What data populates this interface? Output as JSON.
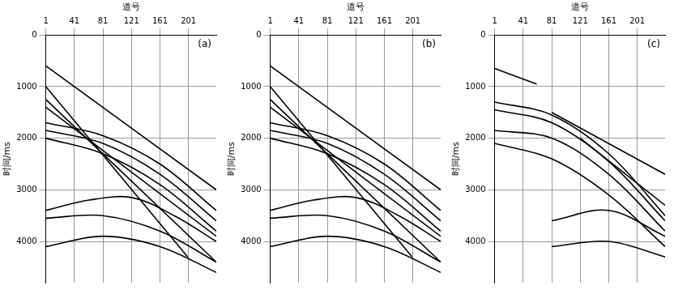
{
  "chart_data": [
    {
      "type": "line",
      "label": "(a)",
      "x_label": "道号",
      "y_label": "时间/ms",
      "xlim": [
        1,
        240
      ],
      "xticks": [
        1,
        41,
        81,
        121,
        161,
        201
      ],
      "ylim": [
        0,
        4800
      ],
      "yticks": [
        0,
        1000,
        2000,
        3000,
        4000
      ],
      "grid": true,
      "series": [
        {
          "color": "#000000",
          "x": [
            1,
            240
          ],
          "values": [
            600,
            3000
          ]
        },
        {
          "color": "#000000",
          "x": [
            1,
            200
          ],
          "values": [
            1000,
            4300
          ]
        },
        {
          "color": "#000000",
          "x": [
            1,
            240
          ],
          "values": [
            1250,
            4400
          ]
        },
        {
          "color": "#000000",
          "x": [
            1,
            240
          ],
          "values": [
            1400,
            3900
          ]
        },
        {
          "color": "#000000",
          "x": [
            1,
            81,
            161,
            240
          ],
          "values": [
            1700,
            1950,
            2500,
            3400
          ]
        },
        {
          "color": "#000000",
          "x": [
            1,
            81,
            161,
            240
          ],
          "values": [
            1850,
            2100,
            2700,
            3600
          ]
        },
        {
          "color": "#000000",
          "x": [
            1,
            81,
            161,
            240
          ],
          "values": [
            2000,
            2300,
            2900,
            3800
          ]
        },
        {
          "color": "#000000",
          "x": [
            1,
            61,
            121,
            181,
            240
          ],
          "values": [
            3400,
            3200,
            3150,
            3500,
            4000
          ]
        },
        {
          "color": "#000000",
          "x": [
            1,
            81,
            161,
            240
          ],
          "values": [
            3550,
            3500,
            3800,
            4400
          ]
        },
        {
          "color": "#000000",
          "x": [
            1,
            81,
            161,
            240
          ],
          "values": [
            4100,
            3900,
            4100,
            4600
          ]
        }
      ]
    },
    {
      "type": "line",
      "label": "(b)",
      "x_label": "道号",
      "y_label": "时间/ms",
      "xlim": [
        1,
        240
      ],
      "xticks": [
        1,
        41,
        81,
        121,
        161,
        201
      ],
      "ylim": [
        0,
        4800
      ],
      "yticks": [
        0,
        1000,
        2000,
        3000,
        4000
      ],
      "grid": true,
      "series": [
        {
          "color": "#000000",
          "x": [
            1,
            240
          ],
          "values": [
            600,
            3000
          ]
        },
        {
          "color": "#000000",
          "x": [
            1,
            200
          ],
          "values": [
            1000,
            4300
          ]
        },
        {
          "color": "#000000",
          "x": [
            1,
            240
          ],
          "values": [
            1250,
            4400
          ]
        },
        {
          "color": "#000000",
          "x": [
            1,
            240
          ],
          "values": [
            1400,
            3900
          ]
        },
        {
          "color": "#000000",
          "x": [
            1,
            81,
            161,
            240
          ],
          "values": [
            1700,
            1950,
            2500,
            3400
          ]
        },
        {
          "color": "#000000",
          "x": [
            1,
            81,
            161,
            240
          ],
          "values": [
            1850,
            2100,
            2700,
            3600
          ]
        },
        {
          "color": "#000000",
          "x": [
            1,
            81,
            161,
            240
          ],
          "values": [
            2000,
            2300,
            2900,
            3800
          ]
        },
        {
          "color": "#000000",
          "x": [
            1,
            61,
            121,
            181,
            240
          ],
          "values": [
            3400,
            3200,
            3150,
            3500,
            4000
          ]
        },
        {
          "color": "#000000",
          "x": [
            1,
            81,
            161,
            240
          ],
          "values": [
            3550,
            3500,
            3800,
            4400
          ]
        },
        {
          "color": "#000000",
          "x": [
            1,
            81,
            161,
            240
          ],
          "values": [
            4100,
            3900,
            4100,
            4600
          ]
        }
      ]
    },
    {
      "type": "line",
      "label": "(c)",
      "x_label": "道号",
      "y_label": "时间/ms",
      "xlim": [
        1,
        240
      ],
      "xticks": [
        1,
        41,
        81,
        121,
        161,
        201
      ],
      "ylim": [
        0,
        4800
      ],
      "yticks": [
        0,
        1000,
        2000,
        3000,
        4000
      ],
      "grid": true,
      "series": [
        {
          "color": "#000000",
          "x": [
            1,
            60
          ],
          "values": [
            650,
            950
          ]
        },
        {
          "color": "#000000",
          "x": [
            81,
            240
          ],
          "values": [
            1500,
            2700
          ]
        },
        {
          "color": "#000000",
          "x": [
            1,
            81,
            161,
            240
          ],
          "values": [
            1300,
            1550,
            2300,
            3500
          ]
        },
        {
          "color": "#000000",
          "x": [
            1,
            81,
            161,
            240
          ],
          "values": [
            1450,
            1700,
            2450,
            3600
          ]
        },
        {
          "color": "#000000",
          "x": [
            1,
            81,
            161,
            240
          ],
          "values": [
            1850,
            2000,
            2700,
            3800
          ]
        },
        {
          "color": "#000000",
          "x": [
            121,
            240
          ],
          "values": [
            2000,
            3300
          ]
        },
        {
          "color": "#000000",
          "x": [
            1,
            81,
            161,
            240
          ],
          "values": [
            2100,
            2400,
            3100,
            4100
          ]
        },
        {
          "color": "#000000",
          "x": [
            81,
            161,
            240
          ],
          "values": [
            3600,
            3400,
            3900
          ]
        },
        {
          "color": "#000000",
          "x": [
            81,
            161,
            240
          ],
          "values": [
            4100,
            4000,
            4300
          ]
        }
      ]
    }
  ]
}
